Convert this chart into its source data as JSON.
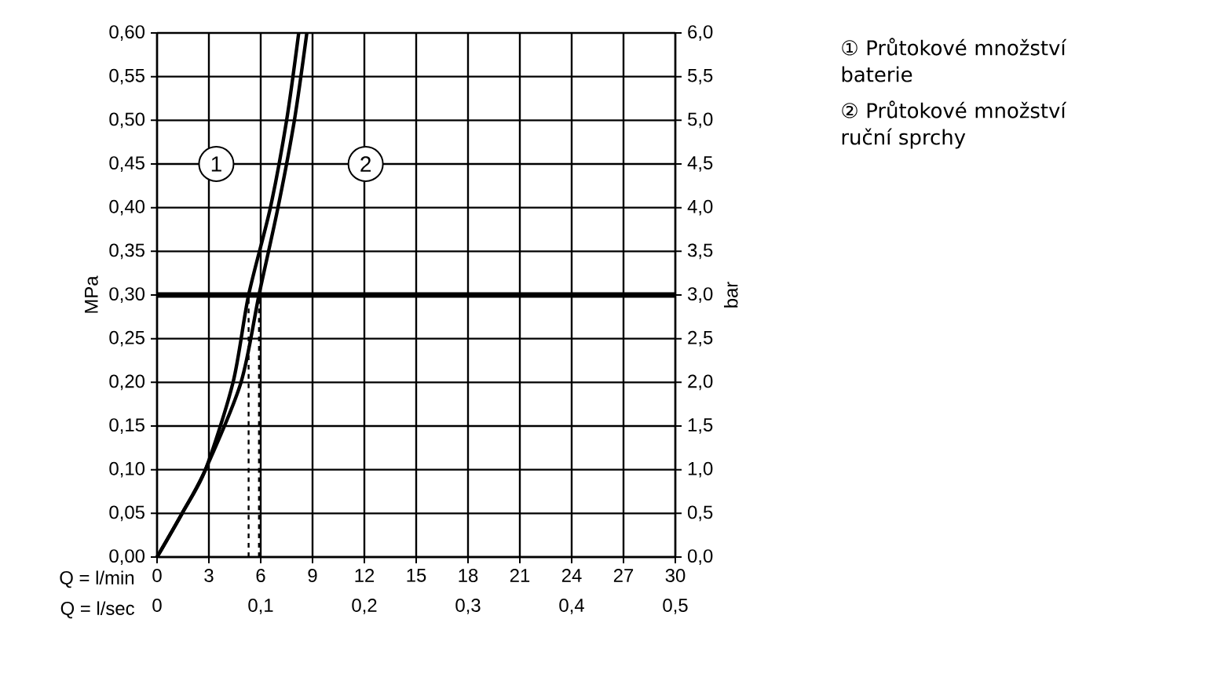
{
  "chart_data": {
    "type": "line",
    "xlabel": "Q = l/min",
    "x2label": "Q = l/sec",
    "ylabel": "MPa",
    "y2label": "bar",
    "xlim": [
      0,
      30
    ],
    "xticks": [
      0,
      3,
      6,
      9,
      12,
      15,
      18,
      21,
      24,
      27,
      30
    ],
    "x2lim": [
      0,
      0.5
    ],
    "x2ticks": [
      {
        "value": 0,
        "label": "0"
      },
      {
        "value": 0.1,
        "label": "0,1"
      },
      {
        "value": 0.2,
        "label": "0,2"
      },
      {
        "value": 0.3,
        "label": "0,3"
      },
      {
        "value": 0.4,
        "label": "0,4"
      },
      {
        "value": 0.5,
        "label": "0,5"
      }
    ],
    "ylim": [
      0,
      0.6
    ],
    "yticks": [
      {
        "value": 0,
        "label": "0,00"
      },
      {
        "value": 0.05,
        "label": "0,05"
      },
      {
        "value": 0.1,
        "label": "0,10"
      },
      {
        "value": 0.15,
        "label": "0,15"
      },
      {
        "value": 0.2,
        "label": "0,20"
      },
      {
        "value": 0.25,
        "label": "0,25"
      },
      {
        "value": 0.3,
        "label": "0,30"
      },
      {
        "value": 0.35,
        "label": "0,35"
      },
      {
        "value": 0.4,
        "label": "0,40"
      },
      {
        "value": 0.45,
        "label": "0,45"
      },
      {
        "value": 0.5,
        "label": "0,50"
      },
      {
        "value": 0.55,
        "label": "0,55"
      },
      {
        "value": 0.6,
        "label": "0,60"
      }
    ],
    "y2lim": [
      0,
      6
    ],
    "y2ticks": [
      {
        "value": 0,
        "label": "0,0"
      },
      {
        "value": 0.5,
        "label": "0,5"
      },
      {
        "value": 1,
        "label": "1,0"
      },
      {
        "value": 1.5,
        "label": "1,5"
      },
      {
        "value": 2,
        "label": "2,0"
      },
      {
        "value": 2.5,
        "label": "2,5"
      },
      {
        "value": 3,
        "label": "3,0"
      },
      {
        "value": 3.5,
        "label": "3,5"
      },
      {
        "value": 4,
        "label": "4,0"
      },
      {
        "value": 4.5,
        "label": "4,5"
      },
      {
        "value": 5,
        "label": "5,0"
      },
      {
        "value": 5.5,
        "label": "5,5"
      },
      {
        "value": 6,
        "label": "6,0"
      }
    ],
    "grid": true,
    "legend": "top left",
    "series": [
      {
        "name": "1",
        "color": "#000000",
        "x": [
          0,
          1.45,
          2.8,
          4.4,
          5.3,
          6.56,
          7.5,
          8.2
        ],
        "values": [
          0,
          0.05,
          0.1,
          0.2,
          0.3,
          0.4,
          0.5,
          0.6
        ]
      },
      {
        "name": "2",
        "color": "#000000",
        "x": [
          0,
          1.45,
          2.8,
          4.86,
          5.9,
          7.0,
          7.95,
          8.67
        ],
        "values": [
          0,
          0.05,
          0.1,
          0.2,
          0.3,
          0.4,
          0.5,
          0.6
        ]
      },
      {
        "type": "line",
        "color": "#000000",
        "line_style": "dashed",
        "x": [
          5.3,
          5.3
        ],
        "values": [
          0,
          0.3
        ]
      },
      {
        "type": "line",
        "color": "#000000",
        "line_style": "dashed",
        "x": [
          5.9,
          5.9
        ],
        "values": [
          0,
          0.3
        ]
      }
    ],
    "ref_lines": [
      {
        "axis": "y",
        "value": 0.3,
        "color": "#000000"
      }
    ],
    "annotations": [
      "① Průtokové množství baterie",
      "② Průtokové množství ruční sprchy"
    ]
  }
}
